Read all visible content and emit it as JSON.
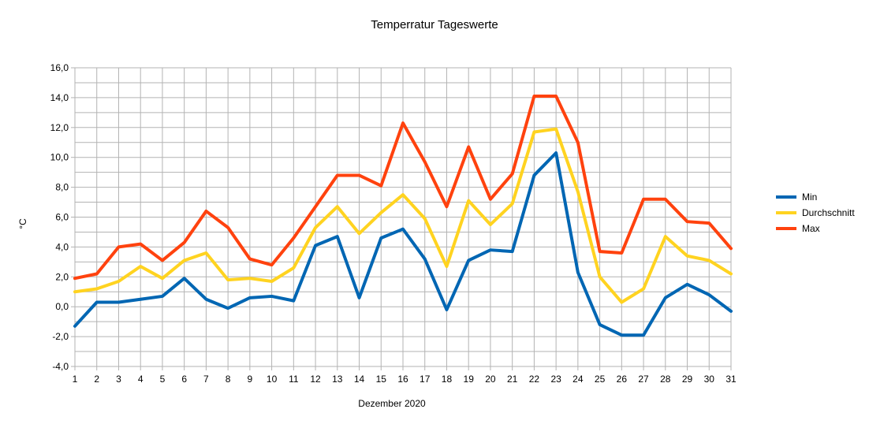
{
  "chart_data": {
    "type": "line",
    "title": "Temperratur Tageswerte",
    "xlabel": "Dezember 2020",
    "ylabel": "°C",
    "ylim": [
      -4,
      16
    ],
    "y_ticks": [
      "-4,0",
      "-2,0",
      "0,0",
      "2,0",
      "4,0",
      "6,0",
      "8,0",
      "10,0",
      "12,0",
      "14,0",
      "16,0"
    ],
    "x": [
      1,
      2,
      3,
      4,
      5,
      6,
      7,
      8,
      9,
      10,
      11,
      12,
      13,
      14,
      15,
      16,
      17,
      18,
      19,
      20,
      21,
      22,
      23,
      24,
      25,
      26,
      27,
      28,
      29,
      30,
      31
    ],
    "grid": true,
    "legend_position": "right",
    "series": [
      {
        "name": "Min",
        "color": "#0066b3",
        "values": [
          -1.3,
          0.3,
          0.3,
          0.5,
          0.7,
          1.9,
          0.5,
          -0.1,
          0.6,
          0.7,
          0.4,
          4.1,
          4.7,
          0.6,
          4.6,
          5.2,
          3.2,
          -0.2,
          3.1,
          3.8,
          3.7,
          8.8,
          10.3,
          2.3,
          -1.2,
          -1.9,
          -1.9,
          0.6,
          1.5,
          0.8,
          -0.3
        ]
      },
      {
        "name": "Durchschnitt",
        "color": "#ffd320",
        "values": [
          1.0,
          1.2,
          1.7,
          2.7,
          1.9,
          3.1,
          3.6,
          1.8,
          1.9,
          1.7,
          2.6,
          5.3,
          6.7,
          4.9,
          6.3,
          7.5,
          5.9,
          2.7,
          7.1,
          5.5,
          6.9,
          11.7,
          11.9,
          7.7,
          2.0,
          0.3,
          1.2,
          4.7,
          3.4,
          3.1,
          2.2
        ]
      },
      {
        "name": "Max",
        "color": "#ff420e",
        "values": [
          1.9,
          2.2,
          4.0,
          4.2,
          3.1,
          4.3,
          6.4,
          5.3,
          3.2,
          2.8,
          4.6,
          6.7,
          8.8,
          8.8,
          8.1,
          12.3,
          9.7,
          6.7,
          10.7,
          7.2,
          8.9,
          14.1,
          14.1,
          11.0,
          3.7,
          3.6,
          7.2,
          7.2,
          5.7,
          5.6,
          3.9
        ]
      }
    ]
  }
}
